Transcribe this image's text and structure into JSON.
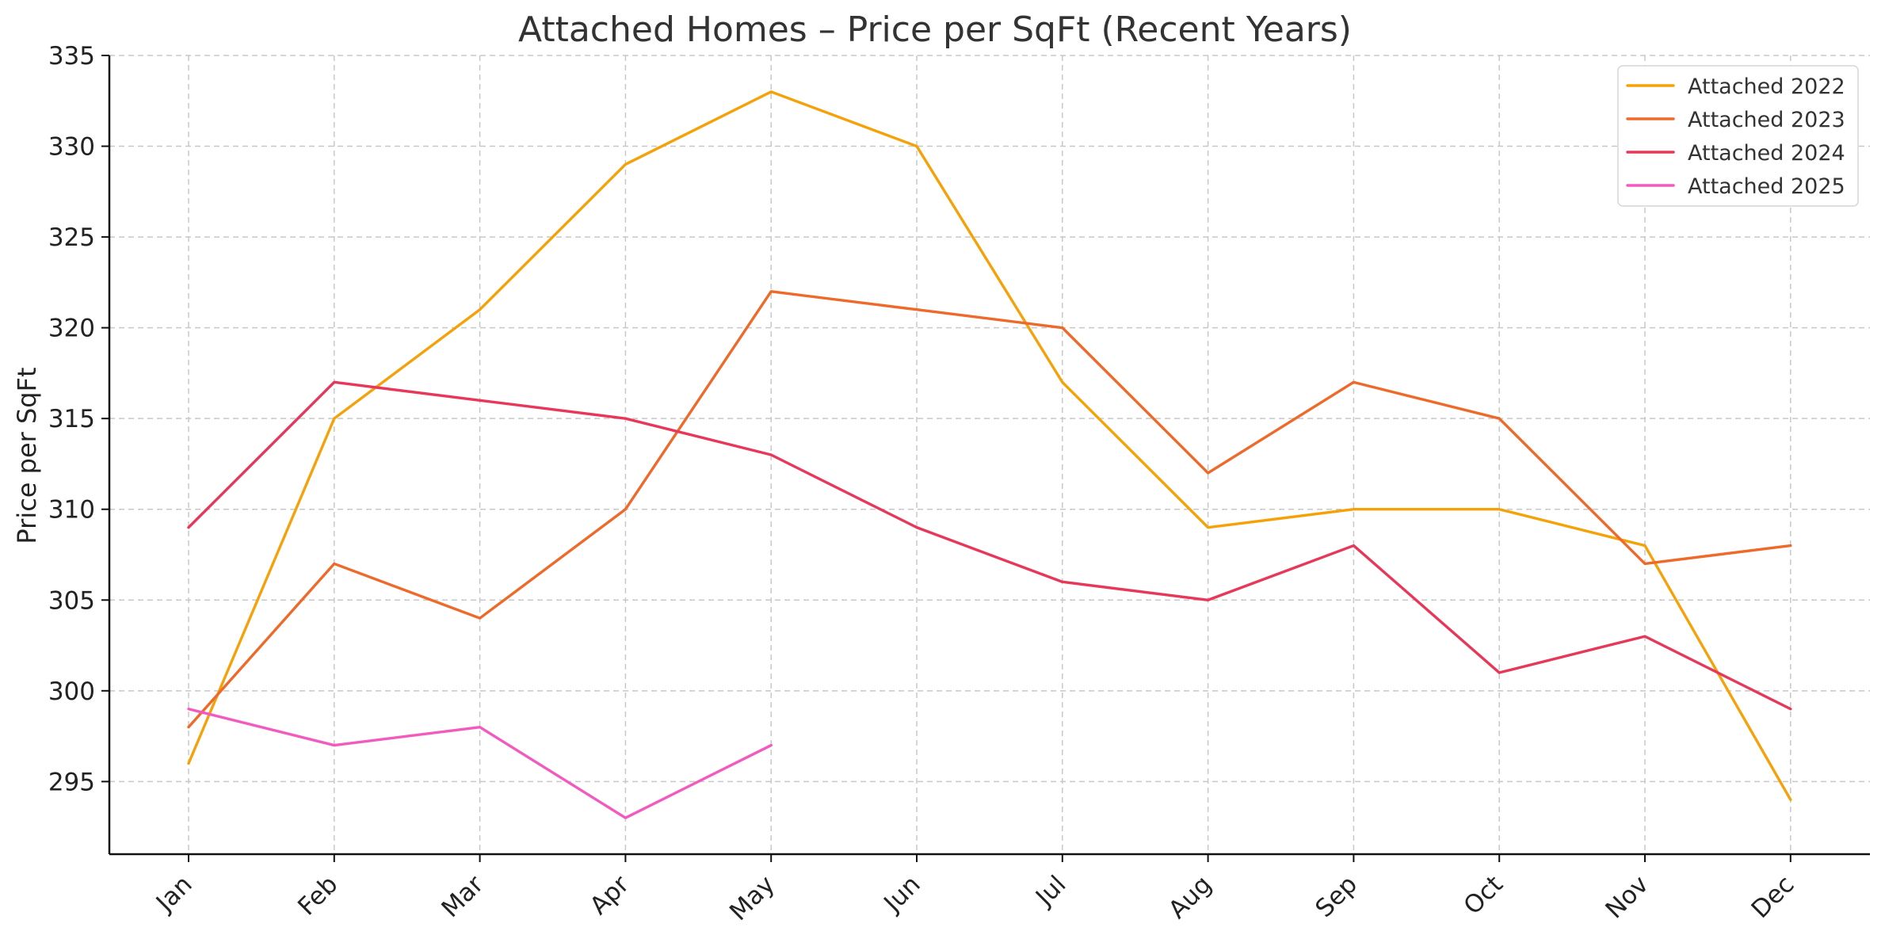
{
  "chart_data": {
    "type": "line",
    "title": "Attached Homes – Price per SqFt (Recent Years)",
    "xlabel": "",
    "ylabel": "Price per SqFt",
    "categories": [
      "Jan",
      "Feb",
      "Mar",
      "Apr",
      "May",
      "Jun",
      "Jul",
      "Aug",
      "Sep",
      "Oct",
      "Nov",
      "Dec"
    ],
    "ylim": [
      291,
      335
    ],
    "yticks": [
      295,
      300,
      305,
      310,
      315,
      320,
      325,
      330,
      335
    ],
    "grid": true,
    "legend_position": "top-right",
    "series": [
      {
        "name": "Attached 2022",
        "color": "#F5A20A",
        "values": [
          296,
          315,
          321,
          329,
          333,
          330,
          317,
          309,
          310,
          310,
          308,
          294
        ]
      },
      {
        "name": "Attached 2023",
        "color": "#EE6A2A",
        "values": [
          298,
          307,
          304,
          310,
          322,
          321,
          320,
          312,
          317,
          315,
          307,
          308
        ]
      },
      {
        "name": "Attached 2024",
        "color": "#E8385A",
        "values": [
          309,
          317,
          316,
          315,
          313,
          309,
          306,
          305,
          308,
          301,
          303,
          299
        ]
      },
      {
        "name": "Attached 2025",
        "color": "#F25AC0",
        "values": [
          299,
          297,
          298,
          293,
          297,
          null,
          null,
          null,
          null,
          null,
          null,
          null
        ]
      }
    ]
  }
}
